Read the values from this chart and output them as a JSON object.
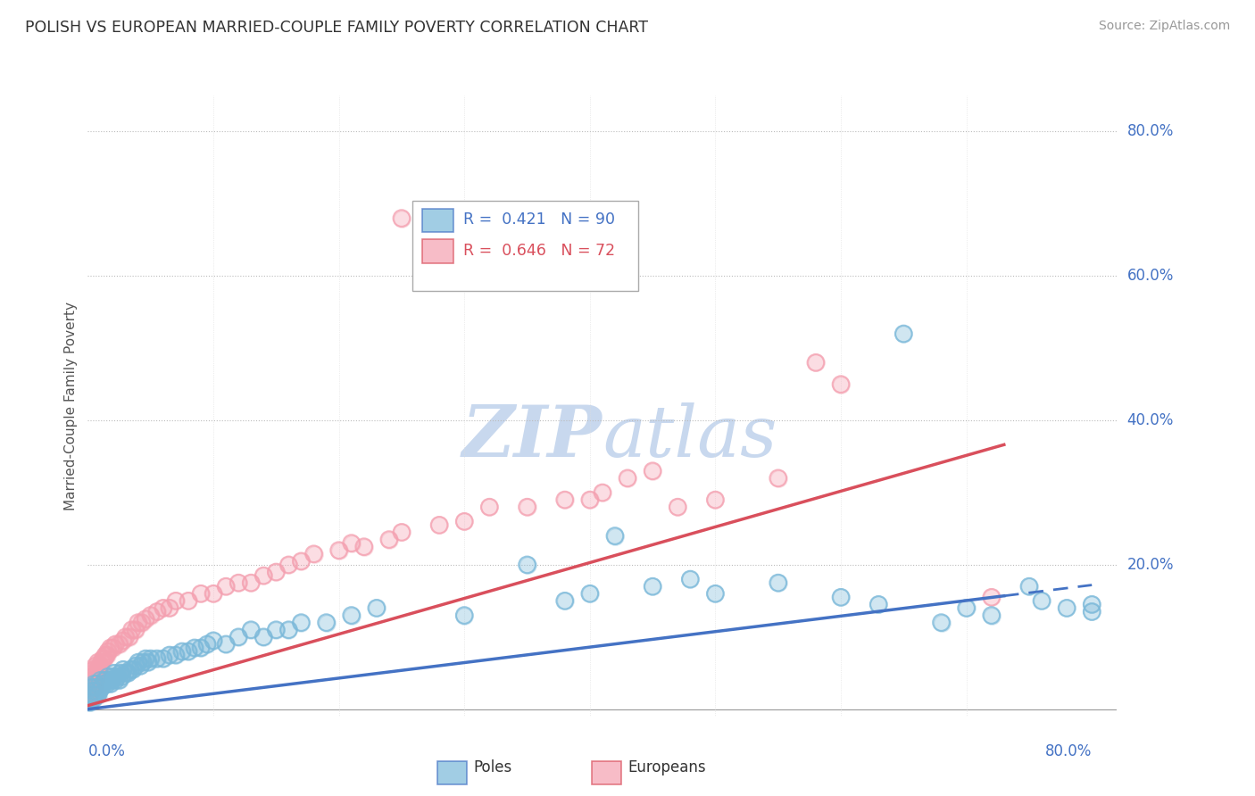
{
  "title": "POLISH VS EUROPEAN MARRIED-COUPLE FAMILY POVERTY CORRELATION CHART",
  "source": "Source: ZipAtlas.com",
  "ylabel": "Married-Couple Family Poverty",
  "xlim": [
    0.0,
    0.82
  ],
  "ylim": [
    -0.01,
    0.85
  ],
  "poles_R": 0.421,
  "poles_N": 90,
  "europeans_R": 0.646,
  "europeans_N": 72,
  "poles_color": "#7ab8d9",
  "europeans_color": "#f4a0b0",
  "poles_line_color": "#4472C4",
  "europeans_line_color": "#d94f5c",
  "poles_line_intercept": 0.0,
  "poles_line_slope": 0.215,
  "poles_line_xend": 0.73,
  "europeans_line_intercept": 0.005,
  "europeans_line_slope": 0.495,
  "europeans_line_xend": 0.73,
  "watermark_zip": "ZIP",
  "watermark_atlas": "atlas",
  "watermark_color": "#c8d8ee",
  "background_color": "#ffffff",
  "grid_color": "#cccccc",
  "ytick_vals": [
    0.0,
    0.2,
    0.4,
    0.6,
    0.8
  ],
  "ytick_labels": [
    "0.0%",
    "20.0%",
    "40.0%",
    "60.0%",
    "80.0%"
  ],
  "right_label_color": "#4472C4",
  "poles_scatter_x": [
    0.001,
    0.001,
    0.001,
    0.002,
    0.002,
    0.003,
    0.003,
    0.003,
    0.004,
    0.004,
    0.005,
    0.005,
    0.005,
    0.006,
    0.006,
    0.007,
    0.007,
    0.008,
    0.008,
    0.009,
    0.01,
    0.01,
    0.011,
    0.012,
    0.013,
    0.014,
    0.015,
    0.016,
    0.017,
    0.018,
    0.019,
    0.02,
    0.021,
    0.022,
    0.023,
    0.025,
    0.026,
    0.027,
    0.028,
    0.03,
    0.032,
    0.034,
    0.036,
    0.038,
    0.04,
    0.042,
    0.044,
    0.046,
    0.048,
    0.05,
    0.055,
    0.06,
    0.065,
    0.07,
    0.075,
    0.08,
    0.085,
    0.09,
    0.095,
    0.1,
    0.11,
    0.12,
    0.13,
    0.14,
    0.15,
    0.16,
    0.17,
    0.19,
    0.21,
    0.23,
    0.3,
    0.35,
    0.38,
    0.4,
    0.42,
    0.45,
    0.48,
    0.5,
    0.55,
    0.6,
    0.63,
    0.65,
    0.68,
    0.7,
    0.72,
    0.75,
    0.76,
    0.78,
    0.8,
    0.8
  ],
  "poles_scatter_y": [
    0.01,
    0.015,
    0.02,
    0.01,
    0.02,
    0.015,
    0.025,
    0.03,
    0.02,
    0.03,
    0.015,
    0.025,
    0.035,
    0.02,
    0.03,
    0.025,
    0.035,
    0.02,
    0.03,
    0.025,
    0.03,
    0.04,
    0.03,
    0.035,
    0.04,
    0.04,
    0.035,
    0.045,
    0.04,
    0.035,
    0.04,
    0.045,
    0.05,
    0.04,
    0.045,
    0.04,
    0.05,
    0.045,
    0.055,
    0.05,
    0.05,
    0.055,
    0.055,
    0.06,
    0.065,
    0.06,
    0.065,
    0.07,
    0.065,
    0.07,
    0.07,
    0.07,
    0.075,
    0.075,
    0.08,
    0.08,
    0.085,
    0.085,
    0.09,
    0.095,
    0.09,
    0.1,
    0.11,
    0.1,
    0.11,
    0.11,
    0.12,
    0.12,
    0.13,
    0.14,
    0.13,
    0.2,
    0.15,
    0.16,
    0.24,
    0.17,
    0.18,
    0.16,
    0.175,
    0.155,
    0.145,
    0.52,
    0.12,
    0.14,
    0.13,
    0.17,
    0.15,
    0.14,
    0.135,
    0.145
  ],
  "europeans_scatter_x": [
    0.001,
    0.001,
    0.002,
    0.002,
    0.003,
    0.003,
    0.004,
    0.004,
    0.005,
    0.005,
    0.006,
    0.006,
    0.007,
    0.008,
    0.008,
    0.009,
    0.01,
    0.011,
    0.012,
    0.013,
    0.014,
    0.015,
    0.016,
    0.018,
    0.02,
    0.022,
    0.025,
    0.028,
    0.03,
    0.033,
    0.035,
    0.038,
    0.04,
    0.043,
    0.046,
    0.05,
    0.055,
    0.06,
    0.065,
    0.07,
    0.08,
    0.09,
    0.1,
    0.11,
    0.12,
    0.13,
    0.14,
    0.15,
    0.16,
    0.17,
    0.18,
    0.2,
    0.21,
    0.22,
    0.24,
    0.25,
    0.28,
    0.3,
    0.32,
    0.35,
    0.25,
    0.38,
    0.4,
    0.41,
    0.43,
    0.45,
    0.47,
    0.5,
    0.55,
    0.58,
    0.6,
    0.72
  ],
  "europeans_scatter_y": [
    0.02,
    0.035,
    0.025,
    0.04,
    0.03,
    0.045,
    0.035,
    0.05,
    0.03,
    0.055,
    0.04,
    0.06,
    0.05,
    0.055,
    0.065,
    0.06,
    0.06,
    0.065,
    0.07,
    0.07,
    0.075,
    0.075,
    0.08,
    0.085,
    0.085,
    0.09,
    0.09,
    0.095,
    0.1,
    0.1,
    0.11,
    0.11,
    0.12,
    0.12,
    0.125,
    0.13,
    0.135,
    0.14,
    0.14,
    0.15,
    0.15,
    0.16,
    0.16,
    0.17,
    0.175,
    0.175,
    0.185,
    0.19,
    0.2,
    0.205,
    0.215,
    0.22,
    0.23,
    0.225,
    0.235,
    0.245,
    0.255,
    0.26,
    0.28,
    0.28,
    0.68,
    0.29,
    0.29,
    0.3,
    0.32,
    0.33,
    0.28,
    0.29,
    0.32,
    0.48,
    0.45,
    0.155
  ]
}
